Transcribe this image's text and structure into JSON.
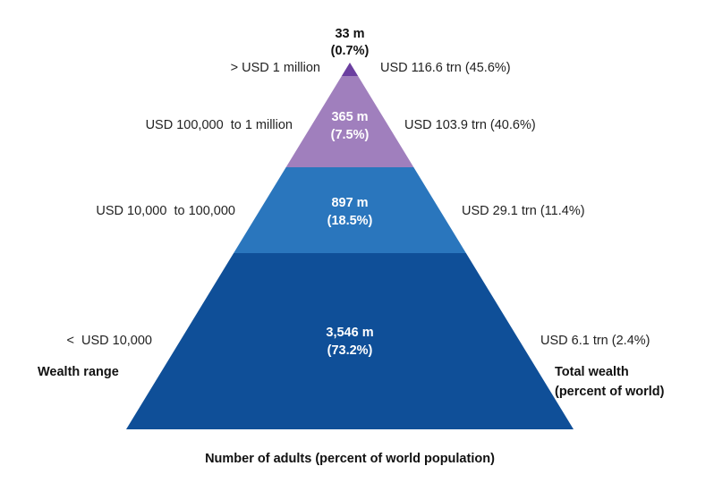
{
  "chart_data": {
    "type": "pyramid",
    "title": "",
    "tiers": [
      {
        "wealth_range": "> USD 1 million",
        "adults_count": "33 m",
        "adults_percent": "(0.7%)",
        "total_wealth": "USD 116.6 trn (45.6%)",
        "adults_millions": 33,
        "adults_pct": 0.7,
        "wealth_trn": 116.6,
        "wealth_pct": 45.6,
        "color": "#6b3fa0"
      },
      {
        "wealth_range": "USD 100,000  to 1 million",
        "adults_count": "365 m",
        "adults_percent": "(7.5%)",
        "total_wealth": "USD 103.9 trn (40.6%)",
        "adults_millions": 365,
        "adults_pct": 7.5,
        "wealth_trn": 103.9,
        "wealth_pct": 40.6,
        "color": "#a07fbd"
      },
      {
        "wealth_range": "USD 10,000  to 100,000",
        "adults_count": "897 m",
        "adults_percent": "(18.5%)",
        "total_wealth": "USD 29.1 trn (11.4%)",
        "adults_millions": 897,
        "adults_pct": 18.5,
        "wealth_trn": 29.1,
        "wealth_pct": 11.4,
        "color": "#2a76bd"
      },
      {
        "wealth_range": "<  USD 10,000",
        "adults_count": "3,546 m",
        "adults_percent": "(73.2%)",
        "total_wealth": "USD 6.1 trn (2.4%)",
        "adults_millions": 3546,
        "adults_pct": 73.2,
        "wealth_trn": 6.1,
        "wealth_pct": 2.4,
        "color": "#0f4f98"
      }
    ],
    "left_axis_label": "Wealth range",
    "right_axis_label_line1": "Total wealth",
    "right_axis_label_line2": "(percent of world)",
    "bottom_label": "Number of adults (percent of world population)"
  }
}
